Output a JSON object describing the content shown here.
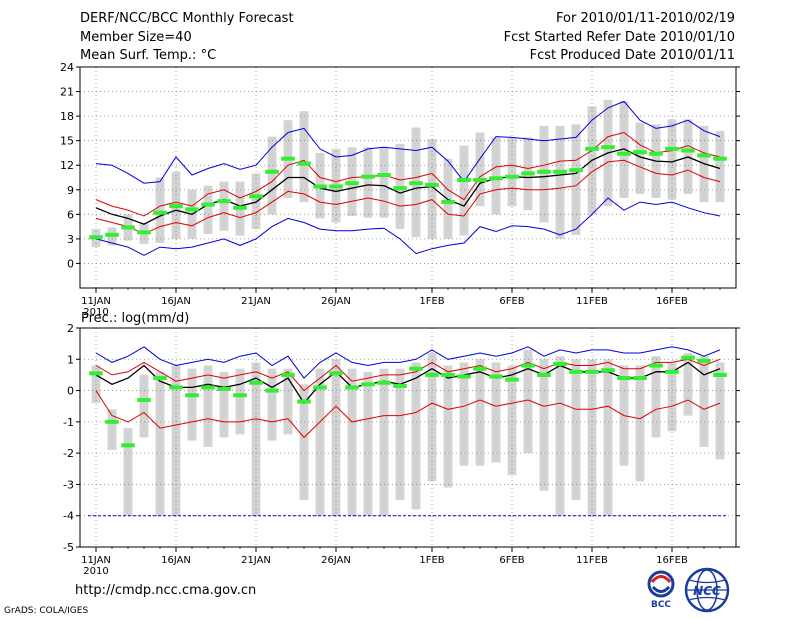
{
  "header": {
    "left": [
      "DERF/NCC/BCC Monthly Forecast",
      "Member Size=40",
      "Mean Surf. Temp.: °C"
    ],
    "right": [
      "For 2010/01/11-2010/02/19",
      "Fcst Started Refer Date 2010/01/10",
      "Fcst Produced Date 2010/01/11"
    ]
  },
  "footer": {
    "url": "http://cmdp.ncc.cma.gov.cn",
    "credit": "GrADS: COLA/IGES"
  },
  "logos": {
    "bcc": "BCC",
    "ncc": "NCC"
  },
  "colors": {
    "envelope": "#0000dd",
    "quartile": "#dd0000",
    "mean": "#000000",
    "box": "#d3d3d3",
    "median": "#33ee33",
    "grid": "#888888"
  },
  "chart_data": [
    {
      "type": "box-line",
      "title": "Mean Surf. Temp.: °C",
      "ylim": [
        -3,
        24
      ],
      "yticks": [
        0,
        3,
        6,
        9,
        12,
        15,
        18,
        21,
        24
      ],
      "ytick_labels": [
        "0",
        "3",
        "6",
        "9",
        "12",
        "15",
        "18",
        "21",
        "24"
      ],
      "x_days": 40,
      "xticks": [
        {
          "day": 1,
          "label": "11JAN",
          "sub": "2010"
        },
        {
          "day": 6,
          "label": "16JAN",
          "sub": ""
        },
        {
          "day": 11,
          "label": "21JAN",
          "sub": ""
        },
        {
          "day": 16,
          "label": "26JAN",
          "sub": ""
        },
        {
          "day": 22,
          "label": "1FEB",
          "sub": ""
        },
        {
          "day": 27,
          "label": "6FEB",
          "sub": ""
        },
        {
          "day": 32,
          "label": "11FEB",
          "sub": ""
        },
        {
          "day": 37,
          "label": "16FEB",
          "sub": ""
        }
      ],
      "series": [
        {
          "name": "max",
          "color": "#0000dd",
          "values": [
            12.2,
            12,
            11,
            9.8,
            10,
            13,
            10.8,
            11.6,
            12.2,
            11.5,
            12,
            14.2,
            16,
            16.5,
            14,
            13,
            13.2,
            14,
            14.2,
            14,
            13.8,
            14.2,
            12.5,
            10,
            12.8,
            15.5,
            15.4,
            15.2,
            15,
            15.2,
            15.4,
            17.5,
            19,
            19.8,
            17.5,
            16.5,
            16.8,
            17.5,
            16.2,
            15.5
          ]
        },
        {
          "name": "upper",
          "color": "#dd0000",
          "values": [
            7.8,
            7,
            6.5,
            5.8,
            7,
            7.5,
            7,
            8.5,
            9,
            8,
            8.8,
            10,
            12,
            12.6,
            10.5,
            10,
            10.5,
            10.6,
            10.8,
            10.2,
            10.5,
            11,
            9,
            7.8,
            10.6,
            11.8,
            12,
            11.6,
            12,
            12.5,
            12.6,
            13.8,
            15.5,
            16,
            14.5,
            13.5,
            13.8,
            14.4,
            13.5,
            13
          ]
        },
        {
          "name": "mean",
          "color": "#000000",
          "values": [
            6.8,
            6,
            5.5,
            4.8,
            5.8,
            6.5,
            6,
            7.2,
            7.8,
            7,
            7.5,
            9,
            10.5,
            10.5,
            9.2,
            8.8,
            9.2,
            9.6,
            9.5,
            8.6,
            9.2,
            9.4,
            7.8,
            7,
            9.8,
            10.4,
            10.6,
            10.5,
            10.6,
            10.8,
            11,
            12.6,
            13.5,
            14,
            13,
            12.5,
            12.4,
            13,
            12.2,
            11.6
          ]
        },
        {
          "name": "lower",
          "color": "#dd0000",
          "values": [
            5.5,
            5,
            4.5,
            3.6,
            4.5,
            5,
            4.6,
            5.6,
            6.2,
            5.6,
            6.2,
            7.5,
            8.8,
            8.5,
            7.5,
            7.2,
            7.6,
            8,
            7.6,
            7,
            7.2,
            7.8,
            6,
            5.8,
            8.5,
            9,
            9.2,
            9,
            9,
            9.2,
            9.5,
            11.2,
            12.4,
            12.6,
            11.8,
            11,
            10.8,
            11.4,
            10.5,
            10
          ]
        },
        {
          "name": "min",
          "color": "#0000dd",
          "values": [
            3,
            2.5,
            2,
            1,
            2,
            1.8,
            2,
            2.5,
            3,
            2.2,
            3,
            4.5,
            5.5,
            5,
            4.2,
            4,
            4,
            4.2,
            4.3,
            3,
            1.2,
            1.8,
            2.2,
            2.5,
            4.5,
            3.9,
            4.6,
            4.5,
            4.2,
            3.5,
            4.2,
            6,
            8,
            6.5,
            7.5,
            7.2,
            7.5,
            6.8,
            6.2,
            5.8
          ]
        }
      ],
      "boxes": [
        {
          "low": 2,
          "high": 4.2,
          "median": 3.2
        },
        {
          "low": 2.2,
          "high": 4.4,
          "median": 3.5
        },
        {
          "low": 2.8,
          "high": 6,
          "median": 4.4
        },
        {
          "low": 2.4,
          "high": 5,
          "median": 3.8
        },
        {
          "low": 2.5,
          "high": 10.5,
          "median": 6.2
        },
        {
          "low": 3,
          "high": 11.2,
          "median": 7
        },
        {
          "low": 3,
          "high": 9,
          "median": 6.6
        },
        {
          "low": 3.6,
          "high": 9.5,
          "median": 7.2
        },
        {
          "low": 4,
          "high": 10,
          "median": 7.6
        },
        {
          "low": 3.4,
          "high": 10,
          "median": 6.8
        },
        {
          "low": 4.2,
          "high": 11,
          "median": 8.2
        },
        {
          "low": 6,
          "high": 15.5,
          "median": 11.2
        },
        {
          "low": 8,
          "high": 17.5,
          "median": 12.8
        },
        {
          "low": 7.5,
          "high": 18.6,
          "median": 12.2
        },
        {
          "low": 5.5,
          "high": 13.5,
          "median": 9.4
        },
        {
          "low": 5,
          "high": 14,
          "median": 9.4
        },
        {
          "low": 5.8,
          "high": 14.2,
          "median": 9.8
        },
        {
          "low": 5.6,
          "high": 14.2,
          "median": 10.6
        },
        {
          "low": 5.6,
          "high": 14.2,
          "median": 10.8
        },
        {
          "low": 4.2,
          "high": 14.6,
          "median": 9.2
        },
        {
          "low": 3.2,
          "high": 16.6,
          "median": 9.8
        },
        {
          "low": 3,
          "high": 15.2,
          "median": 9.6
        },
        {
          "low": 3,
          "high": 12.8,
          "median": 7.5
        },
        {
          "low": 3.4,
          "high": 14.4,
          "median": 10.2
        },
        {
          "low": 7,
          "high": 16,
          "median": 10.2
        },
        {
          "low": 6,
          "high": 15.4,
          "median": 10.4
        },
        {
          "low": 7,
          "high": 15.4,
          "median": 10.6
        },
        {
          "low": 6.5,
          "high": 15.4,
          "median": 11
        },
        {
          "low": 5,
          "high": 16.8,
          "median": 11.2
        },
        {
          "low": 3,
          "high": 16.8,
          "median": 11.2
        },
        {
          "low": 3.5,
          "high": 17,
          "median": 11.4
        },
        {
          "low": 6,
          "high": 19.2,
          "median": 14
        },
        {
          "low": 7,
          "high": 20,
          "median": 14.2
        },
        {
          "low": 8,
          "high": 19.8,
          "median": 13.4
        },
        {
          "low": 8.5,
          "high": 17.2,
          "median": 13.6
        },
        {
          "low": 8,
          "high": 17,
          "median": 13.4
        },
        {
          "low": 7.8,
          "high": 17.6,
          "median": 14
        },
        {
          "low": 8.5,
          "high": 17.6,
          "median": 13.8
        },
        {
          "low": 7.5,
          "high": 16.8,
          "median": 13.2
        },
        {
          "low": 7.5,
          "high": 16.2,
          "median": 12.8
        }
      ]
    },
    {
      "type": "box-line",
      "title": "Prec.: log(mm/d)",
      "ylim": [
        -5,
        2
      ],
      "yticks": [
        -5,
        -4,
        -3,
        -2,
        -1,
        0,
        1,
        2
      ],
      "ytick_labels": [
        "-5",
        "-4",
        "-3",
        "-2",
        "-1",
        "0",
        "1",
        "2"
      ],
      "x_days": 40,
      "baseline": -4,
      "xticks": [
        {
          "day": 1,
          "label": "11JAN",
          "sub": "2010"
        },
        {
          "day": 6,
          "label": "16JAN",
          "sub": ""
        },
        {
          "day": 11,
          "label": "21JAN",
          "sub": ""
        },
        {
          "day": 16,
          "label": "26JAN",
          "sub": ""
        },
        {
          "day": 22,
          "label": "1FEB",
          "sub": ""
        },
        {
          "day": 27,
          "label": "6FEB",
          "sub": ""
        },
        {
          "day": 32,
          "label": "11FEB",
          "sub": ""
        },
        {
          "day": 37,
          "label": "16FEB",
          "sub": ""
        }
      ],
      "series": [
        {
          "name": "max",
          "color": "#0000dd",
          "values": [
            1.2,
            0.9,
            1.1,
            1.4,
            1,
            0.8,
            0.9,
            1,
            0.9,
            1.1,
            1.2,
            0.8,
            1.1,
            0.4,
            0.9,
            1.2,
            0.9,
            0.8,
            0.9,
            0.9,
            1,
            1.3,
            1,
            1.1,
            1.2,
            1.1,
            1.2,
            1.4,
            1.1,
            1.3,
            1.2,
            1.3,
            1.3,
            1.2,
            1.2,
            1.3,
            1.4,
            1.3,
            1.1,
            1.3
          ]
        },
        {
          "name": "upper",
          "color": "#dd0000",
          "values": [
            0.8,
            0.5,
            0.6,
            0.9,
            0.6,
            0.3,
            0.4,
            0.5,
            0.4,
            0.5,
            0.6,
            0.4,
            0.6,
            0,
            0.4,
            0.8,
            0.3,
            0.4,
            0.5,
            0.5,
            0.6,
            0.9,
            0.6,
            0.7,
            0.8,
            0.6,
            0.7,
            0.9,
            0.7,
            0.9,
            0.8,
            0.8,
            0.9,
            0.7,
            0.7,
            0.9,
            0.9,
            1,
            0.8,
            1
          ]
        },
        {
          "name": "mean",
          "color": "#000000",
          "values": [
            0.5,
            0.2,
            0.4,
            0.8,
            0.3,
            0.1,
            0.1,
            0.2,
            0.1,
            0.2,
            0.4,
            0.1,
            0.4,
            -0.4,
            0.2,
            0.6,
            0.1,
            0.2,
            0.3,
            0.2,
            0.4,
            0.7,
            0.4,
            0.5,
            0.6,
            0.4,
            0.5,
            0.7,
            0.5,
            0.8,
            0.6,
            0.6,
            0.6,
            0.4,
            0.4,
            0.6,
            0.6,
            0.9,
            0.5,
            0.7
          ]
        },
        {
          "name": "lower",
          "color": "#dd0000",
          "values": [
            0,
            -0.8,
            -1,
            -0.7,
            -1.2,
            -1.1,
            -1,
            -0.9,
            -1,
            -1,
            -0.9,
            -1,
            -0.9,
            -1.5,
            -1,
            -0.5,
            -1,
            -0.9,
            -0.8,
            -0.8,
            -0.7,
            -0.4,
            -0.6,
            -0.5,
            -0.3,
            -0.5,
            -0.4,
            -0.3,
            -0.5,
            -0.4,
            -0.6,
            -0.6,
            -0.5,
            -0.8,
            -0.9,
            -0.6,
            -0.5,
            -0.3,
            -0.6,
            -0.4
          ]
        },
        {
          "name": "min",
          "color": "#0000dd",
          "values": [
            -4,
            -4,
            -4,
            -4,
            -4,
            -4,
            -4,
            -4,
            -4,
            -4,
            -4,
            -4,
            -4,
            -4,
            -4,
            -4,
            -4,
            -4,
            -4,
            -4,
            -4,
            -4,
            -4,
            -4,
            -4,
            -4,
            -4,
            -4,
            -4,
            -4,
            -4,
            -4,
            -4,
            -4,
            -4,
            -4,
            -4,
            -4,
            -4,
            -4
          ]
        }
      ],
      "boxes": [
        {
          "low": -0.4,
          "high": 0.8,
          "median": 0.55
        },
        {
          "low": -1.9,
          "high": -0.6,
          "median": -1
        },
        {
          "low": -4,
          "high": -1.2,
          "median": -1.75
        },
        {
          "low": -1.5,
          "high": 0.5,
          "median": -0.3
        },
        {
          "low": -4,
          "high": 0.6,
          "median": 0.4
        },
        {
          "low": -4,
          "high": 0.8,
          "median": 0.1
        },
        {
          "low": -1.6,
          "high": 0.7,
          "median": -0.15
        },
        {
          "low": -1.8,
          "high": 0.8,
          "median": 0.1
        },
        {
          "low": -1.5,
          "high": 0.6,
          "median": 0.05
        },
        {
          "low": -1.4,
          "high": 0.7,
          "median": -0.15
        },
        {
          "low": -4,
          "high": 0.9,
          "median": 0.25
        },
        {
          "low": -1.6,
          "high": 0.7,
          "median": 0
        },
        {
          "low": -1.4,
          "high": 0.7,
          "median": 0.5
        },
        {
          "low": -3.5,
          "high": 0.2,
          "median": -0.35
        },
        {
          "low": -4,
          "high": 0.7,
          "median": 0.1
        },
        {
          "low": -4,
          "high": 1,
          "median": 0.55
        },
        {
          "low": -4,
          "high": 0.7,
          "median": 0.1
        },
        {
          "low": -4,
          "high": 0.6,
          "median": 0.2
        },
        {
          "low": -4,
          "high": 0.7,
          "median": 0.25
        },
        {
          "low": -3.5,
          "high": 0.7,
          "median": 0.15
        },
        {
          "low": -3.8,
          "high": 0.9,
          "median": 0.7
        },
        {
          "low": -2.9,
          "high": 1.2,
          "median": 0.5
        },
        {
          "low": -3.1,
          "high": 0.8,
          "median": 0.5
        },
        {
          "low": -2.4,
          "high": 0.9,
          "median": 0.45
        },
        {
          "low": -2.4,
          "high": 1,
          "median": 0.7
        },
        {
          "low": -2.3,
          "high": 0.9,
          "median": 0.45
        },
        {
          "low": -2.7,
          "high": 0.8,
          "median": 0.35
        },
        {
          "low": -2,
          "high": 1.3,
          "median": 0.8
        },
        {
          "low": -3.2,
          "high": 1,
          "median": 0.5
        },
        {
          "low": -4,
          "high": 1.1,
          "median": 0.85
        },
        {
          "low": -3.5,
          "high": 1,
          "median": 0.6
        },
        {
          "low": -4,
          "high": 1,
          "median": 0.6
        },
        {
          "low": -4,
          "high": 1,
          "median": 0.65
        },
        {
          "low": -2.4,
          "high": 0.8,
          "median": 0.4
        },
        {
          "low": -2.9,
          "high": 0.8,
          "median": 0.4
        },
        {
          "low": -1.5,
          "high": 1.1,
          "median": 0.8
        },
        {
          "low": -1.3,
          "high": 0.9,
          "median": 0.6
        },
        {
          "low": -0.8,
          "high": 1.2,
          "median": 1.05
        },
        {
          "low": -1.8,
          "high": 1.1,
          "median": 0.95
        },
        {
          "low": -2.2,
          "high": 0.9,
          "median": 0.5
        }
      ]
    }
  ]
}
